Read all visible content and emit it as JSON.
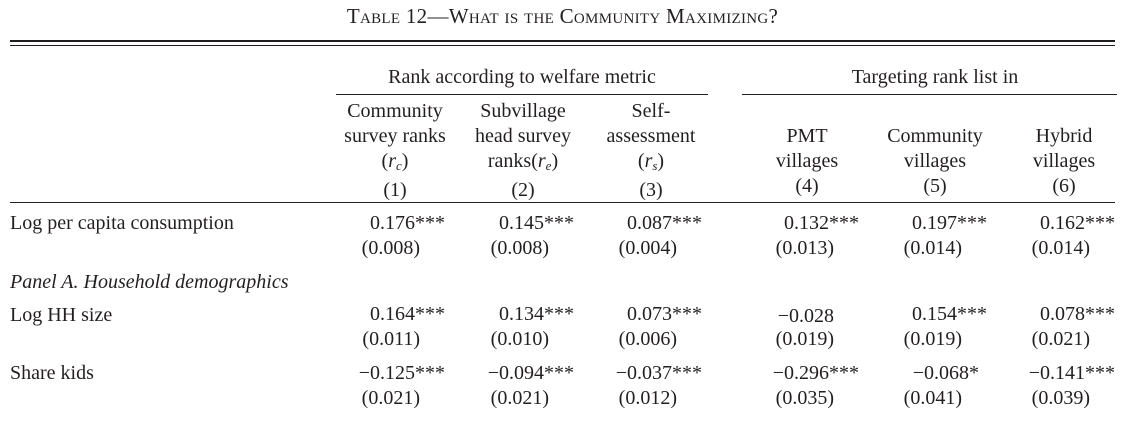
{
  "table": {
    "title": "Table 12—What is the Community Maximizing?",
    "group_headers": [
      {
        "label": "Rank according to welfare metric"
      },
      {
        "label": "Targeting rank list in"
      }
    ],
    "columns": [
      {
        "lines": [
          "Community",
          "survey ranks"
        ],
        "symbol": "r",
        "sub": "c",
        "pre": "(",
        "post": ")",
        "number": "(1)"
      },
      {
        "lines": [
          "Subvillage",
          "head survey"
        ],
        "symbol": "r",
        "sub": "e",
        "pre": "ranks(",
        "post": ")",
        "number": "(2)"
      },
      {
        "lines": [
          "Self-",
          "assessment"
        ],
        "symbol": "r",
        "sub": "s",
        "pre": "(",
        "post": ")",
        "number": "(3)"
      },
      {
        "lines": [
          "PMT",
          "villages"
        ],
        "number": "(4)"
      },
      {
        "lines": [
          "Community",
          "villages"
        ],
        "number": "(5)"
      },
      {
        "lines": [
          "Hybrid",
          "villages"
        ],
        "number": "(6)"
      }
    ],
    "panel_label": "Panel A. Household demographics",
    "rows": [
      {
        "label": "Log per capita consumption",
        "values": [
          "0.176***",
          "0.145***",
          "0.087***",
          "0.132***",
          "0.197***",
          "0.162***"
        ],
        "ses": [
          "(0.008)",
          "(0.008)",
          "(0.004)",
          "(0.013)",
          "(0.014)",
          "(0.014)"
        ]
      },
      {
        "label": "Log HH size",
        "values": [
          "0.164***",
          "0.134***",
          "0.073***",
          "−0.028",
          "0.154***",
          "0.078***"
        ],
        "ses": [
          "(0.011)",
          "(0.010)",
          "(0.006)",
          "(0.019)",
          "(0.019)",
          "(0.021)"
        ]
      },
      {
        "label": "Share kids",
        "values": [
          "−0.125***",
          "−0.094***",
          "−0.037***",
          "−0.296***",
          "−0.068*",
          "−0.141***"
        ],
        "ses": [
          "(0.021)",
          "(0.021)",
          "(0.012)",
          "(0.035)",
          "(0.041)",
          "(0.039)"
        ]
      }
    ]
  }
}
